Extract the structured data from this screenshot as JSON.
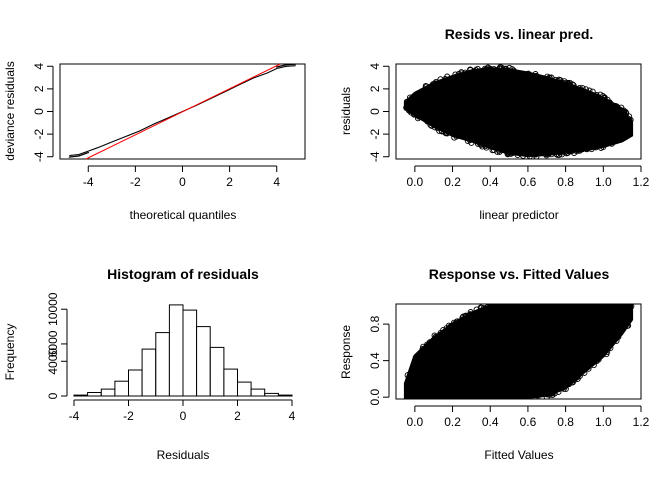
{
  "panels": [
    {
      "id": "qq",
      "chart_data": {
        "type": "line",
        "title": "",
        "xlabel": "theoretical quantiles",
        "ylabel": "deviance residuals",
        "xlim": [
          -5.2,
          5.2
        ],
        "ylim": [
          -4.2,
          4.2
        ],
        "xticks": [
          -4,
          -2,
          0,
          2,
          4
        ],
        "yticks": [
          -4,
          -2,
          0,
          2,
          4
        ],
        "series": [
          {
            "style": "black-line",
            "x": [
              -4.8,
              -4.4,
              -4.0,
              -3.6,
              -3.0,
              -2.4,
              -1.8,
              -1.2,
              -0.6,
              0,
              0.6,
              1.2,
              1.8,
              2.4,
              3.0,
              3.6,
              4.0,
              4.4,
              4.8
            ],
            "y": [
              -3.9,
              -3.8,
              -3.5,
              -3.2,
              -2.7,
              -2.2,
              -1.7,
              -1.1,
              -0.55,
              0,
              0.55,
              1.15,
              1.75,
              2.35,
              2.95,
              3.4,
              3.8,
              4.0,
              4.05
            ]
          },
          {
            "style": "red-reference",
            "x": [
              -4.1,
              4.15
            ],
            "y": [
              -4.2,
              4.2
            ]
          }
        ]
      }
    },
    {
      "id": "resid-lp",
      "chart_data": {
        "type": "scatter",
        "title": "Resids vs. linear pred.",
        "xlabel": "linear predictor",
        "ylabel": "residuals",
        "xlim": [
          -0.1,
          1.2
        ],
        "ylim": [
          -4.2,
          4.2
        ],
        "xticks": [
          0.0,
          0.2,
          0.4,
          0.6,
          0.8,
          1.0,
          1.2
        ],
        "yticks": [
          -4,
          -2,
          0,
          2,
          4
        ],
        "band": {
          "x": [
            -0.05,
            0.0,
            0.1,
            0.2,
            0.3,
            0.4,
            0.5,
            0.6,
            0.7,
            0.8,
            0.9,
            1.0,
            1.1,
            1.15
          ],
          "upper": [
            0.8,
            1.6,
            2.5,
            3.1,
            3.6,
            3.8,
            3.7,
            3.4,
            3.0,
            2.5,
            1.9,
            1.2,
            0.2,
            -0.9
          ],
          "lower": [
            0.3,
            -0.3,
            -1.3,
            -2.1,
            -2.6,
            -3.2,
            -3.7,
            -3.9,
            -3.8,
            -3.6,
            -3.4,
            -3.1,
            -2.6,
            -2.1
          ]
        }
      }
    },
    {
      "id": "hist",
      "chart_data": {
        "type": "bar",
        "title": "Histogram of residuals",
        "xlabel": "Residuals",
        "ylabel": "Frequency",
        "xlim": [
          -4,
          4
        ],
        "ylim": [
          0,
          10600
        ],
        "xticks": [
          -4,
          -2,
          0,
          2,
          4
        ],
        "yticks": [
          0,
          4000,
          6000,
          10000
        ],
        "bin_width": 0.5,
        "bin_starts": [
          -4.0,
          -3.5,
          -3.0,
          -2.5,
          -2.0,
          -1.5,
          -1.0,
          -0.5,
          0.0,
          0.5,
          1.0,
          1.5,
          2.0,
          2.5,
          3.0,
          3.5
        ],
        "values": [
          100,
          400,
          800,
          1700,
          3000,
          5400,
          7300,
          10500,
          9900,
          8000,
          5600,
          3100,
          1600,
          800,
          300,
          100
        ]
      }
    },
    {
      "id": "resp-fit",
      "chart_data": {
        "type": "scatter",
        "title": "Response vs. Fitted Values",
        "xlabel": "Fitted Values",
        "ylabel": "Response",
        "xlim": [
          -0.1,
          1.2
        ],
        "ylim": [
          -0.02,
          1.02
        ],
        "xticks": [
          0.0,
          0.2,
          0.4,
          0.6,
          0.8,
          1.0,
          1.2
        ],
        "yticks": [
          0.0,
          0.4,
          0.8
        ],
        "band": {
          "x": [
            -0.05,
            0.0,
            0.1,
            0.2,
            0.3,
            0.4,
            0.5,
            0.6,
            0.7,
            0.8,
            0.9,
            1.0,
            1.1,
            1.15
          ],
          "upper": [
            0.15,
            0.45,
            0.65,
            0.8,
            0.92,
            1.0,
            1.0,
            1.0,
            1.0,
            1.0,
            1.0,
            1.0,
            1.0,
            1.0
          ],
          "lower": [
            0.0,
            0.0,
            0.0,
            0.0,
            0.0,
            0.0,
            0.0,
            0.0,
            0.02,
            0.1,
            0.28,
            0.45,
            0.7,
            0.85
          ]
        }
      }
    }
  ]
}
